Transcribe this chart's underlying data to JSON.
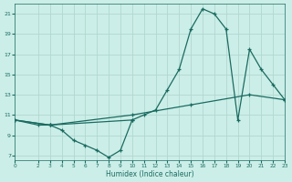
{
  "xlabel": "Humidex (Indice chaleur)",
  "background_color": "#cceee8",
  "grid_color": "#b0d8d0",
  "line_color": "#1a6b60",
  "series": [
    {
      "x": [
        0,
        2,
        3,
        4,
        5,
        6,
        7,
        8,
        9,
        10
      ],
      "y": [
        10.5,
        10.0,
        10.0,
        9.5,
        8.5,
        8.0,
        7.5,
        6.8,
        7.5,
        10.5
      ]
    },
    {
      "x": [
        0,
        3,
        10,
        11,
        12,
        13,
        14,
        15,
        16,
        17,
        18,
        19,
        20,
        21,
        22,
        23
      ],
      "y": [
        10.5,
        10.0,
        10.5,
        11.0,
        11.5,
        13.5,
        15.5,
        19.5,
        21.5,
        21.0,
        19.5,
        10.5,
        17.5,
        15.5,
        14.0,
        12.5
      ]
    },
    {
      "x": [
        0,
        3,
        10,
        15,
        20,
        23
      ],
      "y": [
        10.5,
        10.0,
        11.0,
        12.0,
        13.0,
        12.5
      ]
    }
  ],
  "xlim": [
    0,
    23
  ],
  "ylim": [
    6.5,
    22.0
  ],
  "yticks": [
    7,
    9,
    11,
    13,
    15,
    17,
    19,
    21
  ],
  "xticks": [
    0,
    2,
    3,
    4,
    5,
    6,
    7,
    8,
    9,
    10,
    11,
    12,
    13,
    14,
    15,
    16,
    17,
    18,
    19,
    20,
    21,
    22,
    23
  ]
}
